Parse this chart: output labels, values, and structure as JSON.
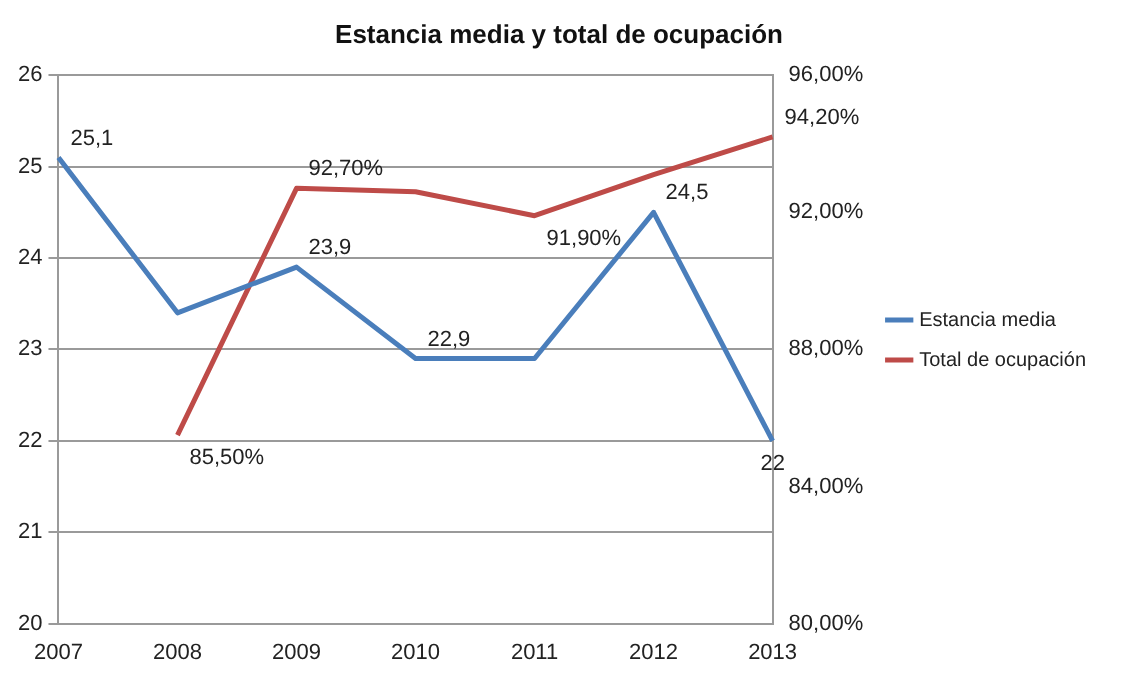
{
  "chart_data": {
    "type": "line",
    "title": "Estancia media y total de ocupación",
    "categories": [
      "2007",
      "2008",
      "2009",
      "2010",
      "2011",
      "2012",
      "2013"
    ],
    "series": [
      {
        "name": "Estancia media",
        "color": "#4a7ebb",
        "values": [
          25.1,
          23.4,
          23.9,
          22.9,
          22.9,
          24.5,
          22
        ],
        "value_labels": [
          "25,1",
          null,
          "23,9",
          "22,9",
          null,
          "24,5",
          "22"
        ]
      },
      {
        "name": "Total de ocupación",
        "color": "#be4b48",
        "axis": "y2",
        "values": [
          null,
          85.5,
          92.7,
          92.6,
          91.9,
          93.1,
          94.2
        ],
        "value_labels": [
          null,
          "85,50%",
          "92,70%",
          null,
          "91,90%",
          null,
          "94,20%"
        ]
      }
    ],
    "ylim": [
      20,
      26
    ],
    "yticks": [
      20,
      21,
      22,
      23,
      24,
      25,
      26
    ],
    "y2lim": [
      80,
      96
    ],
    "y2ticks": [
      {
        "value": 80,
        "label": "80,00%"
      },
      {
        "value": 84,
        "label": "84,00%"
      },
      {
        "value": 88,
        "label": "88,00%"
      },
      {
        "value": 92,
        "label": "92,00%"
      },
      {
        "value": 96,
        "label": "96,00%"
      }
    ],
    "grid": "y",
    "legend": "right",
    "marker": "none",
    "line_style": "solid"
  }
}
